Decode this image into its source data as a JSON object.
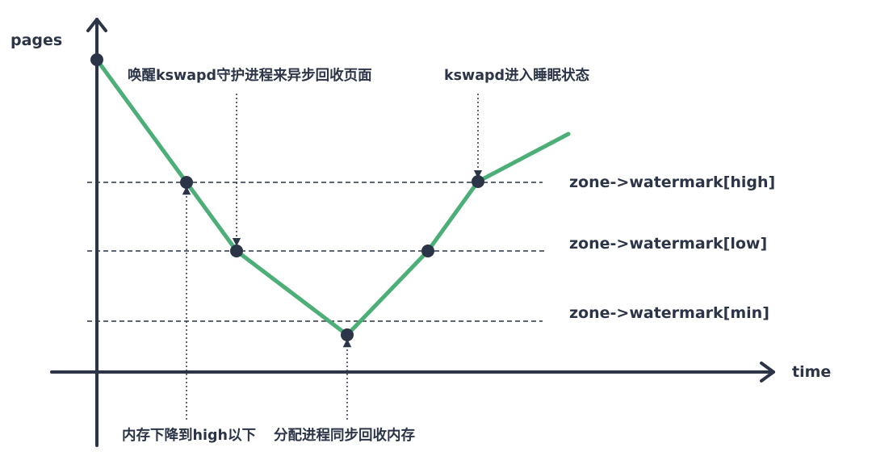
{
  "axes": {
    "y_label": "pages",
    "x_label": "time"
  },
  "watermarks": [
    {
      "id": "high",
      "label": "zone->watermark[high]"
    },
    {
      "id": "low",
      "label": "zone->watermark[low]"
    },
    {
      "id": "min",
      "label": "zone->watermark[min]"
    }
  ],
  "annotations": {
    "wake_kswapd": "唤醒kswapd守护进程来异步回收页面",
    "kswapd_sleep": "kswapd进入睡眠状态",
    "below_high": "内存下降到high以下",
    "sync_reclaim": "分配进程同步回收内存"
  },
  "colors": {
    "curve": "#4caf78",
    "ink": "#2b3547"
  }
}
